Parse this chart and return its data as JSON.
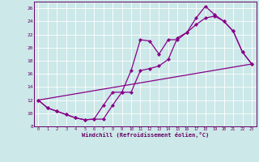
{
  "xlabel": "Windchill (Refroidissement éolien,°C)",
  "xlim": [
    -0.5,
    23.5
  ],
  "ylim": [
    8,
    27
  ],
  "xticks": [
    0,
    1,
    2,
    3,
    4,
    5,
    6,
    7,
    8,
    9,
    10,
    11,
    12,
    13,
    14,
    15,
    16,
    17,
    18,
    19,
    20,
    21,
    22,
    23
  ],
  "yticks": [
    8,
    10,
    12,
    14,
    16,
    18,
    20,
    22,
    24,
    26
  ],
  "bg_color": "#cce8e8",
  "line_color": "#880088",
  "grid_color": "#ffffff",
  "line1_x": [
    0,
    1,
    2,
    3,
    4,
    5,
    6,
    7,
    8,
    9,
    10,
    11,
    12,
    13,
    14,
    15,
    16,
    17,
    18,
    19,
    20,
    21,
    22,
    23
  ],
  "line1_y": [
    12.0,
    10.8,
    10.3,
    9.8,
    9.3,
    9.0,
    9.1,
    9.1,
    11.2,
    13.2,
    16.5,
    21.2,
    21.0,
    19.0,
    21.2,
    21.2,
    22.3,
    24.5,
    26.3,
    25.0,
    24.0,
    22.5,
    19.3,
    17.5
  ],
  "line2_x": [
    0,
    1,
    2,
    3,
    4,
    5,
    6,
    7,
    8,
    9,
    10,
    11,
    12,
    13,
    14,
    15,
    16,
    17,
    18,
    19,
    20,
    21,
    22,
    23
  ],
  "line2_y": [
    12.0,
    10.8,
    10.3,
    9.8,
    9.3,
    9.0,
    9.1,
    11.2,
    13.2,
    13.2,
    13.2,
    16.5,
    16.8,
    17.2,
    18.2,
    21.5,
    22.3,
    23.5,
    24.5,
    24.8,
    24.0,
    22.5,
    19.3,
    17.5
  ],
  "line3_x": [
    0,
    23
  ],
  "line3_y": [
    12.0,
    17.5
  ]
}
